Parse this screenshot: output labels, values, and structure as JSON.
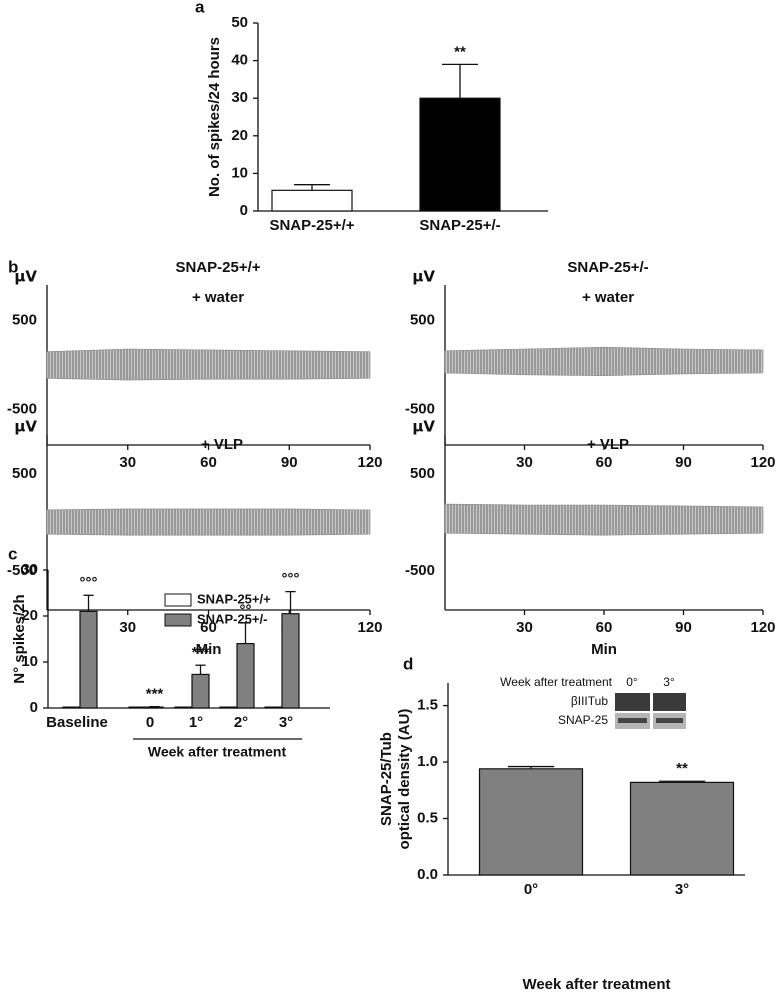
{
  "chart_data": [
    {
      "type": "bar",
      "panel": "a",
      "ylabel": "No. of spikes/24 hours",
      "categories": [
        "SNAP-25+/+",
        "SNAP-25+/-"
      ],
      "values": [
        5.5,
        30
      ],
      "errors": [
        1.5,
        9
      ],
      "colors": [
        "#ffffff",
        "#000000"
      ],
      "annotations": [
        null,
        "**"
      ],
      "ylim": [
        0,
        50
      ],
      "yticks": [
        0,
        10,
        20,
        30,
        40,
        50
      ]
    },
    {
      "type": "trace",
      "panel": "b",
      "title": "SNAP-25+/+",
      "subtitle": "+ water",
      "ylabel": "µV",
      "x": [
        0,
        30,
        60,
        90,
        120
      ],
      "upper": [
        150,
        180,
        170,
        160,
        150
      ],
      "lower": [
        -150,
        -170,
        -160,
        -160,
        -150
      ],
      "color": "#8a8a8a",
      "xlim": [
        0,
        120
      ],
      "xticks": [
        30,
        60,
        90,
        120
      ],
      "ylim": [
        -900,
        900
      ],
      "yticks": [
        -500,
        500
      ]
    },
    {
      "type": "trace",
      "title": "SNAP-25+/-",
      "subtitle": "+ water",
      "ylabel": "µV",
      "x": [
        0,
        30,
        60,
        90,
        120
      ],
      "upper": [
        160,
        180,
        200,
        180,
        170
      ],
      "lower": [
        -90,
        -110,
        -120,
        -100,
        -90
      ],
      "color": "#8a8a8a",
      "xlim": [
        0,
        120
      ],
      "xticks": [
        30,
        60,
        90,
        120
      ],
      "ylim": [
        -900,
        900
      ],
      "yticks": [
        -500,
        500
      ]
    },
    {
      "type": "trace",
      "subtitle": "+ VLP",
      "ylabel": "µV",
      "xlabel": "Min",
      "x": [
        0,
        30,
        60,
        90,
        120
      ],
      "upper": [
        130,
        140,
        140,
        140,
        130
      ],
      "lower": [
        -120,
        -130,
        -130,
        -130,
        -120
      ],
      "color": "#8a8a8a",
      "xlim": [
        0,
        120
      ],
      "xticks": [
        30,
        60,
        90,
        120
      ],
      "ylim": [
        -900,
        900
      ],
      "yticks": [
        -500,
        500
      ]
    },
    {
      "type": "trace",
      "subtitle": "+ VLP",
      "ylabel": "µV",
      "xlabel": "Min",
      "x": [
        0,
        30,
        60,
        90,
        120
      ],
      "upper": [
        190,
        180,
        180,
        170,
        160
      ],
      "lower": [
        -110,
        -120,
        -130,
        -120,
        -110
      ],
      "color": "#8a8a8a",
      "xlim": [
        0,
        120
      ],
      "xticks": [
        30,
        60,
        90,
        120
      ],
      "ylim": [
        -900,
        900
      ],
      "yticks": [
        -500,
        500
      ]
    },
    {
      "type": "grouped-bar",
      "panel": "c",
      "ylabel": "N° spikes/2h",
      "xlabel": "Week after treatment",
      "categories": [
        "Baseline",
        "0",
        "1°",
        "2°",
        "3°"
      ],
      "series": [
        {
          "name": "SNAP-25+/+",
          "color": "#ffffff",
          "values": [
            0.2,
            0.2,
            0.2,
            0.2,
            0.2
          ]
        },
        {
          "name": "SNAP-25+/-",
          "color": "#808080",
          "values": [
            21,
            0.2,
            7.3,
            14,
            20.5
          ],
          "errors": [
            3.5,
            0.1,
            2,
            4.5,
            4.8
          ]
        }
      ],
      "annotations": [
        "°°°",
        "***",
        "***",
        "°°",
        "°°°"
      ],
      "ylim": [
        0,
        30
      ],
      "yticks": [
        0,
        10,
        20,
        30
      ]
    },
    {
      "type": "bar",
      "panel": "d",
      "ylabel": [
        "SNAP-25/Tub",
        "optical density (AU)"
      ],
      "xlabel": "Week after treatment",
      "categories": [
        "0°",
        "3°"
      ],
      "values": [
        0.94,
        0.82
      ],
      "errors": [
        0.02,
        0.01
      ],
      "colors": [
        "#808080",
        "#808080"
      ],
      "annotations": [
        null,
        "**"
      ],
      "ylim": [
        0,
        1.7
      ],
      "yticks": [
        {
          "value": 0,
          "label": "0.0"
        },
        0.5,
        {
          "value": 1,
          "label": "1.0"
        },
        1.5
      ],
      "inset": {
        "title": "Week after treatment",
        "lanes": [
          "0°",
          "3°"
        ],
        "rows": [
          "βIIITub",
          "SNAP-25"
        ]
      }
    }
  ]
}
